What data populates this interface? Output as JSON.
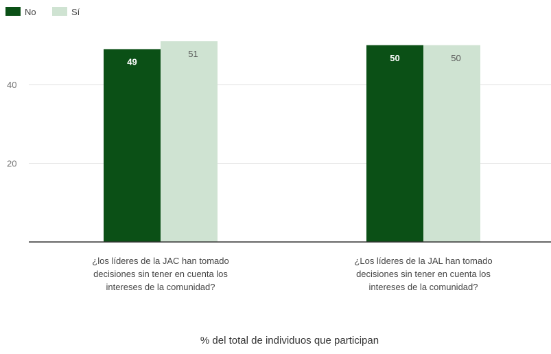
{
  "colors": {
    "no": "#0b5016",
    "si": "#cfe3d2",
    "grid": "#e0e0e0",
    "baseline": "#333333"
  },
  "chart_data": {
    "type": "bar",
    "series": [
      {
        "name": "No",
        "values": [
          49,
          50
        ]
      },
      {
        "name": "Sí",
        "values": [
          51,
          50
        ]
      }
    ],
    "categories": [
      [
        "¿los líderes de la JAC han tomado",
        "decisiones sin tener en cuenta los",
        "intereses de la comunidad?"
      ],
      [
        "¿Los líderes de la JAL han tomado",
        "decisiones sin tener en cuenta los",
        "intereses de la comunidad?"
      ]
    ],
    "yticks": [
      20,
      40
    ],
    "ylim": [
      0,
      56
    ],
    "xlabel": "% del total de individuos que participan",
    "legend_position": "top-left",
    "grid": true
  }
}
